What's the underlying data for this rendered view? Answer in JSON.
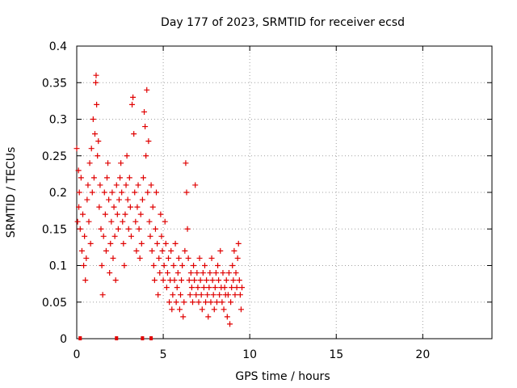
{
  "chart_data": {
    "type": "scatter",
    "title": "Day 177 of 2023, SRMTID for receiver ecsd",
    "xlabel": "GPS time / hours",
    "ylabel": "SRMTID / TECUs",
    "xlim": [
      0,
      24
    ],
    "ylim": [
      0,
      0.4
    ],
    "xticks": [
      0,
      5,
      10,
      15,
      20
    ],
    "yticks": [
      0,
      0.05,
      0.1,
      0.15,
      0.2,
      0.25,
      0.3,
      0.35,
      0.4
    ],
    "xtick_labels": [
      "0",
      "5",
      "10",
      "15",
      "20"
    ],
    "ytick_labels": [
      "0",
      "0.05",
      "0.1",
      "0.15",
      "0.2",
      "0.25",
      "0.3",
      "0.35",
      "0.4"
    ],
    "grid": true,
    "marker": "+",
    "marker_color": "#e00000",
    "series": [
      {
        "name": "SRMTID",
        "points": [
          [
            0.0,
            0.26
          ],
          [
            0.05,
            0.16
          ],
          [
            0.1,
            0.23
          ],
          [
            0.12,
            0.18
          ],
          [
            0.15,
            0.2
          ],
          [
            0.2,
            0.15
          ],
          [
            0.25,
            0.22
          ],
          [
            0.3,
            0.12
          ],
          [
            0.35,
            0.17
          ],
          [
            0.4,
            0.1
          ],
          [
            0.45,
            0.14
          ],
          [
            0.5,
            0.08
          ],
          [
            0.55,
            0.11
          ],
          [
            0.6,
            0.19
          ],
          [
            0.65,
            0.21
          ],
          [
            0.7,
            0.16
          ],
          [
            0.75,
            0.24
          ],
          [
            0.8,
            0.13
          ],
          [
            0.85,
            0.26
          ],
          [
            0.9,
            0.2
          ],
          [
            0.95,
            0.3
          ],
          [
            1.0,
            0.22
          ],
          [
            1.05,
            0.28
          ],
          [
            1.1,
            0.35
          ],
          [
            1.12,
            0.36
          ],
          [
            1.15,
            0.32
          ],
          [
            1.2,
            0.25
          ],
          [
            1.25,
            0.27
          ],
          [
            1.3,
            0.18
          ],
          [
            1.35,
            0.21
          ],
          [
            1.4,
            0.15
          ],
          [
            1.45,
            0.1
          ],
          [
            1.5,
            0.06
          ],
          [
            1.55,
            0.14
          ],
          [
            1.6,
            0.2
          ],
          [
            1.65,
            0.17
          ],
          [
            1.7,
            0.12
          ],
          [
            1.75,
            0.22
          ],
          [
            1.8,
            0.24
          ],
          [
            1.85,
            0.19
          ],
          [
            1.9,
            0.09
          ],
          [
            1.95,
            0.13
          ],
          [
            2.0,
            0.16
          ],
          [
            2.05,
            0.2
          ],
          [
            2.1,
            0.11
          ],
          [
            2.15,
            0.18
          ],
          [
            2.2,
            0.14
          ],
          [
            2.25,
            0.08
          ],
          [
            2.3,
            0.21
          ],
          [
            2.35,
            0.17
          ],
          [
            2.4,
            0.15
          ],
          [
            2.45,
            0.19
          ],
          [
            2.5,
            0.22
          ],
          [
            2.55,
            0.24
          ],
          [
            2.6,
            0.2
          ],
          [
            2.65,
            0.16
          ],
          [
            2.7,
            0.13
          ],
          [
            2.75,
            0.1
          ],
          [
            2.8,
            0.17
          ],
          [
            2.85,
            0.21
          ],
          [
            2.9,
            0.25
          ],
          [
            2.95,
            0.19
          ],
          [
            3.0,
            0.15
          ],
          [
            3.05,
            0.22
          ],
          [
            3.1,
            0.18
          ],
          [
            3.15,
            0.14
          ],
          [
            3.2,
            0.32
          ],
          [
            3.25,
            0.33
          ],
          [
            3.3,
            0.28
          ],
          [
            3.35,
            0.2
          ],
          [
            3.4,
            0.16
          ],
          [
            3.45,
            0.12
          ],
          [
            3.5,
            0.18
          ],
          [
            3.55,
            0.21
          ],
          [
            3.6,
            0.15
          ],
          [
            3.65,
            0.11
          ],
          [
            3.7,
            0.17
          ],
          [
            3.75,
            0.13
          ],
          [
            3.8,
            0.19
          ],
          [
            3.85,
            0.22
          ],
          [
            3.9,
            0.31
          ],
          [
            3.95,
            0.29
          ],
          [
            4.0,
            0.25
          ],
          [
            4.05,
            0.34
          ],
          [
            4.1,
            0.2
          ],
          [
            4.15,
            0.27
          ],
          [
            4.2,
            0.16
          ],
          [
            4.25,
            0.14
          ],
          [
            4.3,
            0.21
          ],
          [
            4.35,
            0.12
          ],
          [
            4.4,
            0.18
          ],
          [
            4.45,
            0.1
          ],
          [
            4.5,
            0.08
          ],
          [
            4.55,
            0.15
          ],
          [
            4.6,
            0.2
          ],
          [
            4.65,
            0.13
          ],
          [
            4.7,
            0.06
          ],
          [
            4.75,
            0.11
          ],
          [
            4.8,
            0.09
          ],
          [
            4.85,
            0.17
          ],
          [
            4.9,
            0.14
          ],
          [
            4.95,
            0.12
          ],
          [
            5.0,
            0.08
          ],
          [
            5.05,
            0.1
          ],
          [
            5.1,
            0.16
          ],
          [
            5.15,
            0.13
          ],
          [
            5.2,
            0.07
          ],
          [
            5.25,
            0.09
          ],
          [
            5.3,
            0.11
          ],
          [
            5.35,
            0.05
          ],
          [
            5.4,
            0.08
          ],
          [
            5.45,
            0.12
          ],
          [
            5.5,
            0.04
          ],
          [
            5.55,
            0.06
          ],
          [
            5.6,
            0.1
          ],
          [
            5.65,
            0.08
          ],
          [
            5.7,
            0.13
          ],
          [
            5.75,
            0.05
          ],
          [
            5.8,
            0.07
          ],
          [
            5.85,
            0.09
          ],
          [
            5.9,
            0.11
          ],
          [
            5.95,
            0.04
          ],
          [
            6.0,
            0.06
          ],
          [
            6.05,
            0.08
          ],
          [
            6.1,
            0.1
          ],
          [
            6.15,
            0.03
          ],
          [
            6.2,
            0.05
          ],
          [
            6.25,
            0.12
          ],
          [
            6.3,
            0.24
          ],
          [
            6.35,
            0.2
          ],
          [
            6.4,
            0.15
          ],
          [
            6.45,
            0.11
          ],
          [
            6.5,
            0.08
          ],
          [
            6.55,
            0.06
          ],
          [
            6.6,
            0.09
          ],
          [
            6.65,
            0.07
          ],
          [
            6.7,
            0.05
          ],
          [
            6.75,
            0.1
          ],
          [
            6.8,
            0.08
          ],
          [
            6.85,
            0.21
          ],
          [
            6.9,
            0.06
          ],
          [
            6.95,
            0.09
          ],
          [
            7.0,
            0.07
          ],
          [
            7.05,
            0.05
          ],
          [
            7.1,
            0.11
          ],
          [
            7.15,
            0.08
          ],
          [
            7.2,
            0.06
          ],
          [
            7.25,
            0.04
          ],
          [
            7.3,
            0.09
          ],
          [
            7.35,
            0.07
          ],
          [
            7.4,
            0.1
          ],
          [
            7.45,
            0.05
          ],
          [
            7.5,
            0.08
          ],
          [
            7.55,
            0.06
          ],
          [
            7.6,
            0.03
          ],
          [
            7.65,
            0.07
          ],
          [
            7.7,
            0.09
          ],
          [
            7.75,
            0.05
          ],
          [
            7.8,
            0.11
          ],
          [
            7.85,
            0.08
          ],
          [
            7.9,
            0.06
          ],
          [
            7.95,
            0.04
          ],
          [
            8.0,
            0.07
          ],
          [
            8.05,
            0.09
          ],
          [
            8.1,
            0.05
          ],
          [
            8.15,
            0.1
          ],
          [
            8.2,
            0.08
          ],
          [
            8.25,
            0.06
          ],
          [
            8.3,
            0.12
          ],
          [
            8.35,
            0.07
          ],
          [
            8.4,
            0.05
          ],
          [
            8.45,
            0.09
          ],
          [
            8.5,
            0.04
          ],
          [
            8.55,
            0.07
          ],
          [
            8.6,
            0.06
          ],
          [
            8.65,
            0.08
          ],
          [
            8.7,
            0.03
          ],
          [
            8.75,
            0.06
          ],
          [
            8.8,
            0.09
          ],
          [
            8.85,
            0.02
          ],
          [
            8.9,
            0.05
          ],
          [
            8.95,
            0.07
          ],
          [
            9.0,
            0.1
          ],
          [
            9.05,
            0.08
          ],
          [
            9.1,
            0.12
          ],
          [
            9.15,
            0.06
          ],
          [
            9.2,
            0.09
          ],
          [
            9.25,
            0.07
          ],
          [
            9.3,
            0.11
          ],
          [
            9.35,
            0.13
          ],
          [
            9.4,
            0.08
          ],
          [
            9.45,
            0.06
          ],
          [
            9.5,
            0.04
          ],
          [
            9.55,
            0.07
          ]
        ],
        "zero_points_x": [
          0.2,
          2.3,
          3.8,
          4.3
        ]
      }
    ]
  }
}
